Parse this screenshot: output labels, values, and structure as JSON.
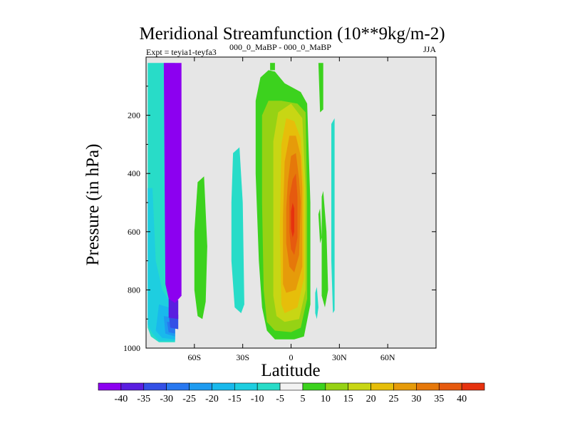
{
  "chart_data": {
    "type": "contour",
    "title": "Meridional Streamfunction (10**9kg/m-2)",
    "subtitle_left": "Expt = teyia1-teyfa3",
    "subtitle_superscript": "000_0_MaBP - 000_0_MaBP",
    "subtitle_right": "JJA",
    "xlabel": "Latitude",
    "ylabel": "Pressure (in hPa)",
    "x_range": [
      -90,
      90
    ],
    "y_range": [
      0,
      1000
    ],
    "x_ticks": [
      {
        "value": -60,
        "label": "60S"
      },
      {
        "value": -30,
        "label": "30S"
      },
      {
        "value": 0,
        "label": "0"
      },
      {
        "value": 30,
        "label": "30N"
      },
      {
        "value": 60,
        "label": "60N"
      }
    ],
    "y_ticks": [
      {
        "value": 200,
        "label": "200"
      },
      {
        "value": 400,
        "label": "400"
      },
      {
        "value": 600,
        "label": "600"
      },
      {
        "value": 800,
        "label": "800"
      },
      {
        "value": 1000,
        "label": "1000"
      }
    ],
    "background_color": "#e6e6e6",
    "colorbar": {
      "labels": [
        "-40",
        "-35",
        "-30",
        "-25",
        "-20",
        "-15",
        "-10",
        "-5",
        "5",
        "10",
        "15",
        "20",
        "25",
        "30",
        "35",
        "40"
      ],
      "colors": [
        "#8c00f0",
        "#5a1ee0",
        "#3350e6",
        "#2878f0",
        "#1e9bf0",
        "#19b9ec",
        "#1ecee0",
        "#28dcc8",
        "#f2f2f2",
        "#3cd21e",
        "#96d214",
        "#c8d614",
        "#e6be0a",
        "#e69b0a",
        "#e6780a",
        "#e65a0f",
        "#e6320f"
      ]
    },
    "contours": [
      {
        "name": "cyan-cell-outer",
        "color": "#28dcc8",
        "points": [
          [
            -89,
            20
          ],
          [
            -72,
            20
          ],
          [
            -72,
            980
          ],
          [
            -82,
            980
          ],
          [
            -87,
            960
          ],
          [
            -89,
            930
          ]
        ]
      },
      {
        "name": "cyan-cell-2",
        "color": "#1ecee0",
        "points": [
          [
            -89,
            450
          ],
          [
            -86,
            450
          ],
          [
            -84,
            700
          ],
          [
            -80,
            800
          ],
          [
            -75,
            840
          ],
          [
            -72,
            870
          ],
          [
            -72,
            975
          ],
          [
            -82,
            975
          ],
          [
            -86,
            950
          ],
          [
            -89,
            920
          ]
        ]
      },
      {
        "name": "cyan-cell-3",
        "color": "#19b9ec",
        "points": [
          [
            -82,
            850
          ],
          [
            -76,
            860
          ],
          [
            -72,
            880
          ],
          [
            -72,
            970
          ],
          [
            -80,
            965
          ],
          [
            -84,
            940
          ]
        ]
      },
      {
        "name": "cyan-cell-4",
        "color": "#1e9bf0",
        "points": [
          [
            -79,
            890
          ],
          [
            -72,
            895
          ],
          [
            -72,
            960
          ],
          [
            -78,
            950
          ]
        ]
      },
      {
        "name": "blue-cell-5",
        "color": "#2878f0",
        "points": [
          [
            -77,
            910
          ],
          [
            -72,
            910
          ],
          [
            -72,
            950
          ],
          [
            -76,
            945
          ]
        ]
      },
      {
        "name": "blue-cell-6",
        "color": "#3350e6",
        "points": [
          [
            -76,
            880
          ],
          [
            -70,
            885
          ],
          [
            -70,
            935
          ],
          [
            -75,
            930
          ]
        ]
      },
      {
        "name": "blue-cell-7",
        "color": "#5a1ee0",
        "points": [
          [
            -76,
            830
          ],
          [
            -70,
            835
          ],
          [
            -70,
            900
          ],
          [
            -76,
            895
          ]
        ]
      },
      {
        "name": "purple-core",
        "color": "#8c00f0",
        "points": [
          [
            -79,
            20
          ],
          [
            -68,
            20
          ],
          [
            -68,
            820
          ],
          [
            -72,
            845
          ],
          [
            -76,
            830
          ],
          [
            -78,
            780
          ]
        ]
      },
      {
        "name": "green-cell-a",
        "color": "#3cd21e",
        "points": [
          [
            -58,
            430
          ],
          [
            -54,
            410
          ],
          [
            -52,
            650
          ],
          [
            -53,
            840
          ],
          [
            -55,
            900
          ],
          [
            -58,
            890
          ],
          [
            -60,
            800
          ],
          [
            -60,
            600
          ]
        ]
      },
      {
        "name": "cyan-cell-b",
        "color": "#28dcc8",
        "points": [
          [
            -36,
            330
          ],
          [
            -32,
            310
          ],
          [
            -30,
            500
          ],
          [
            -29,
            850
          ],
          [
            -31,
            880
          ],
          [
            -35,
            860
          ],
          [
            -37,
            700
          ],
          [
            -37,
            500
          ]
        ]
      },
      {
        "name": "green-cell-c-top",
        "color": "#3cd21e",
        "points": [
          [
            -13,
            20
          ],
          [
            -10,
            20
          ],
          [
            -10,
            45
          ],
          [
            -13,
            45
          ]
        ]
      },
      {
        "name": "green-cell-c",
        "color": "#3cd21e",
        "points": [
          [
            -22,
            150
          ],
          [
            -19,
            70
          ],
          [
            -14,
            45
          ],
          [
            -10,
            50
          ],
          [
            -4,
            90
          ],
          [
            6,
            120
          ],
          [
            10,
            160
          ],
          [
            12,
            500
          ],
          [
            12,
            850
          ],
          [
            8,
            960
          ],
          [
            2,
            970
          ],
          [
            -10,
            970
          ],
          [
            -15,
            940
          ],
          [
            -18,
            860
          ],
          [
            -20,
            700
          ],
          [
            -22,
            400
          ]
        ]
      },
      {
        "name": "yellowgreen-cell-d",
        "color": "#96d214",
        "points": [
          [
            -18,
            200
          ],
          [
            -14,
            150
          ],
          [
            -6,
            150
          ],
          [
            4,
            160
          ],
          [
            9,
            190
          ],
          [
            10,
            500
          ],
          [
            10,
            830
          ],
          [
            6,
            930
          ],
          [
            0,
            945
          ],
          [
            -10,
            940
          ],
          [
            -15,
            910
          ],
          [
            -17,
            800
          ],
          [
            -18,
            500
          ]
        ]
      },
      {
        "name": "yellow-cell-e",
        "color": "#c8d614",
        "points": [
          [
            -11,
            290
          ],
          [
            -8,
            190
          ],
          [
            0,
            160
          ],
          [
            7,
            210
          ],
          [
            9,
            450
          ],
          [
            9,
            800
          ],
          [
            5,
            900
          ],
          [
            -4,
            910
          ],
          [
            -9,
            890
          ],
          [
            -11,
            820
          ]
        ]
      },
      {
        "name": "gold-cell-f",
        "color": "#e6be0a",
        "points": [
          [
            -6,
            300
          ],
          [
            -3,
            210
          ],
          [
            2,
            220
          ],
          [
            6,
            280
          ],
          [
            8,
            450
          ],
          [
            8,
            760
          ],
          [
            4,
            860
          ],
          [
            -4,
            880
          ],
          [
            -6,
            850
          ],
          [
            -7,
            600
          ]
        ]
      },
      {
        "name": "orange-cell-g",
        "color": "#e69b0a",
        "points": [
          [
            -4,
            360
          ],
          [
            -1,
            270
          ],
          [
            3,
            270
          ],
          [
            6,
            340
          ],
          [
            7,
            450
          ],
          [
            7,
            720
          ],
          [
            3,
            800
          ],
          [
            -3,
            810
          ],
          [
            -5,
            780
          ],
          [
            -5,
            550
          ]
        ]
      },
      {
        "name": "orange-cell-h",
        "color": "#e6780a",
        "points": [
          [
            -2,
            430
          ],
          [
            0,
            340
          ],
          [
            3,
            330
          ],
          [
            5,
            420
          ],
          [
            6,
            500
          ],
          [
            5,
            680
          ],
          [
            2,
            740
          ],
          [
            -1,
            720
          ],
          [
            -3,
            640
          ],
          [
            -3,
            520
          ]
        ]
      },
      {
        "name": "redorange-cell-i",
        "color": "#e65a0f",
        "points": [
          [
            -1,
            480
          ],
          [
            1,
            420
          ],
          [
            3,
            400
          ],
          [
            4,
            480
          ],
          [
            4,
            620
          ],
          [
            2,
            680
          ],
          [
            0,
            660
          ],
          [
            -1,
            600
          ]
        ]
      },
      {
        "name": "red-core-j",
        "color": "#e6320f",
        "points": [
          [
            0,
            530
          ],
          [
            1,
            500
          ],
          [
            2,
            520
          ],
          [
            2,
            600
          ],
          [
            1,
            620
          ],
          [
            0,
            590
          ]
        ]
      },
      {
        "name": "green-cell-k",
        "color": "#3cd21e",
        "points": [
          [
            17,
            20
          ],
          [
            20,
            20
          ],
          [
            20,
            180
          ],
          [
            18,
            190
          ]
        ]
      },
      {
        "name": "cyan-cell-l",
        "color": "#28dcc8",
        "points": [
          [
            25,
            230
          ],
          [
            27,
            210
          ],
          [
            27,
            520
          ],
          [
            27,
            870
          ],
          [
            26,
            880
          ],
          [
            25,
            700
          ]
        ]
      },
      {
        "name": "green-cell-m",
        "color": "#3cd21e",
        "points": [
          [
            19,
            480
          ],
          [
            20,
            460
          ],
          [
            22,
            600
          ],
          [
            23,
            800
          ],
          [
            21,
            860
          ],
          [
            19,
            820
          ],
          [
            19,
            650
          ]
        ]
      },
      {
        "name": "cyan-cell-n",
        "color": "#28dcc8",
        "points": [
          [
            15,
            810
          ],
          [
            16,
            790
          ],
          [
            17,
            860
          ],
          [
            16,
            900
          ],
          [
            15,
            880
          ]
        ]
      },
      {
        "name": "green-speck-o",
        "color": "#3cd21e",
        "points": [
          [
            17,
            540
          ],
          [
            18,
            520
          ],
          [
            19,
            620
          ],
          [
            18,
            640
          ]
        ]
      }
    ]
  }
}
